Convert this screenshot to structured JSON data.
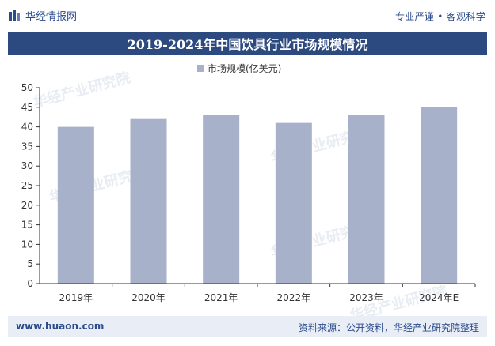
{
  "header": {
    "brand": "华经情报网",
    "tagline": "专业严谨 • 客观科学"
  },
  "watermark": {
    "text": "华经产业研究院",
    "url": "www.huaon.com"
  },
  "colors": {
    "bar": "#a7b1ca",
    "title_bg": "#2c4a80",
    "brand": "#2b4b8a",
    "footer_bg": "#e9eef6"
  },
  "chart_data": {
    "type": "bar",
    "title": "2019-2024年中国饮具行业市场规模情况",
    "categories": [
      "2019年",
      "2020年",
      "2021年",
      "2022年",
      "2023年",
      "2024年E"
    ],
    "series": [
      {
        "name": "市场规模(亿美元)",
        "values": [
          40,
          42,
          43,
          41,
          43,
          45
        ]
      }
    ],
    "ylim": [
      0,
      50
    ],
    "yticks": [
      0,
      5,
      10,
      15,
      20,
      25,
      30,
      35,
      40,
      45,
      50
    ],
    "grid": false,
    "legend_position": "top-center"
  },
  "footer": {
    "website": "www.huaon.com",
    "source": "资料来源：公开资料，华经产业研究院整理"
  }
}
